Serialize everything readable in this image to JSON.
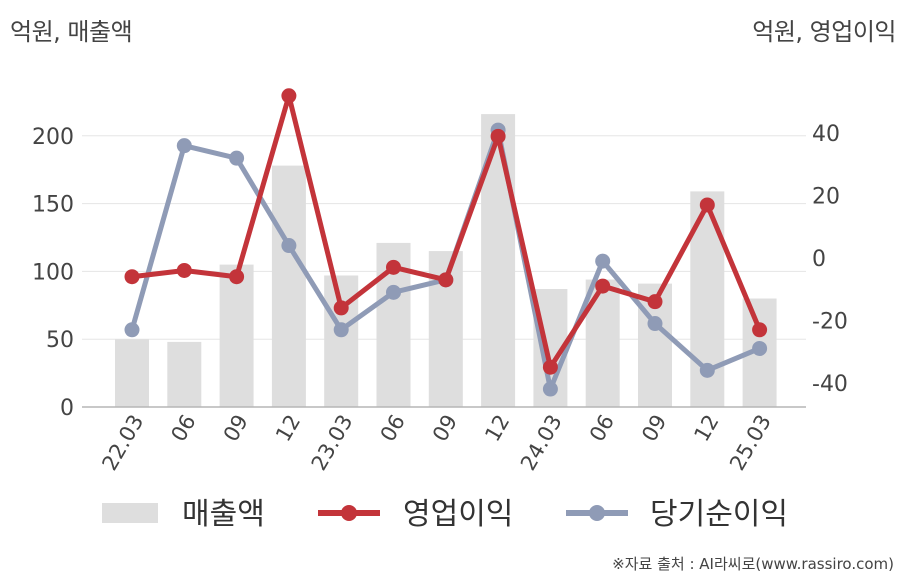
{
  "units": {
    "left": "억원, 매출액",
    "right": "억원, 영업이익"
  },
  "source": "※자료 출처 : AI라씨로(www.rassiro.com)",
  "colors": {
    "revenue": "#dedede",
    "operating_profit": "#c3343a",
    "net_income": "#8f9bb6",
    "grid": "#e5e5e5"
  },
  "chart_data": {
    "type": "bar",
    "categories": [
      "22.03",
      "06",
      "09",
      "12",
      "23.03",
      "06",
      "09",
      "12",
      "24.03",
      "06",
      "09",
      "12",
      "25.03"
    ],
    "series": [
      {
        "name": "매출액",
        "type": "bar",
        "axis": "left",
        "values": [
          50,
          48,
          105,
          178,
          97,
          121,
          115,
          216,
          87,
          94,
          91,
          159,
          80
        ]
      },
      {
        "name": "영업이익",
        "type": "line",
        "axis": "right",
        "values": [
          -6,
          -4,
          -6,
          52,
          -16,
          -3,
          -7,
          39,
          -35,
          -9,
          -14,
          17,
          -23
        ]
      },
      {
        "name": "당기순이익",
        "type": "line",
        "axis": "right",
        "values": [
          -23,
          36,
          32,
          4,
          -23,
          -11,
          -7,
          41,
          -42,
          -1,
          -21,
          -36,
          -29
        ]
      }
    ],
    "y_left": {
      "lim": [
        0,
        250
      ],
      "ticks": [
        0,
        50,
        100,
        150,
        200
      ]
    },
    "y_right": {
      "lim": [
        -48,
        55
      ],
      "ticks": [
        -40,
        -20,
        0,
        20,
        40
      ]
    },
    "legend": {
      "position": "bottom",
      "items": [
        "매출액",
        "영업이익",
        "당기순이익"
      ]
    },
    "grid": true
  }
}
